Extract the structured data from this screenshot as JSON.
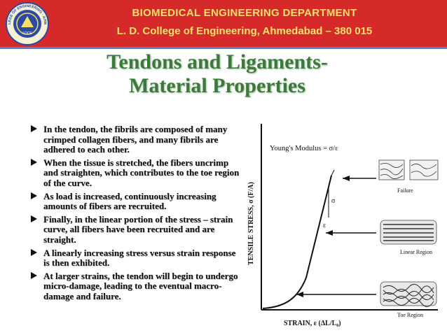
{
  "banner": {
    "department": "BIOMEDICAL ENGINEERING DEPARTMENT",
    "college": "L. D. College of Engineering, Ahmedabad – 380 015",
    "logo_text": "L.D. COLLEGE OF ENGINEERING · AHMEDABAD",
    "logo_core": "LDCE",
    "colors": {
      "banner_bg": "#d62a2a",
      "banner_text": "#f4e06a",
      "border": "#5e7fbf"
    }
  },
  "slide": {
    "title_line1": "Tendons and Ligaments-",
    "title_line2": "Material Properties",
    "title_color": "#3c7a3c",
    "bullets": [
      " In the tendon, the fibrils are composed of many crimped collagen fibers, and many fibrils are adhered to each other.",
      "When the tissue is stretched, the fibers uncrimp and straighten, which contributes to the toe region of the curve.",
      "As load is increased, continuously increasing amounts of fibers are recruited.",
      "Finally, in the linear portion of the stress – strain curve, all fibers have been recruited and are straight.",
      "A linearly increasing stress versus strain response is then exhibited.",
      "At larger strains, the tendon will begin to undergo micro-damage, leading to the eventual macro-damage and failure."
    ]
  },
  "figure": {
    "youngs_label": "Young's Modulus = σ/ε",
    "y_axis_label": "TENSILE STRESS, σ (F/A)",
    "x_axis_label": "STRAIN, ε (ΔL/L₀)",
    "sigma": "σ",
    "epsilon": "ε",
    "regions": [
      "Failure",
      "Linear Region",
      "Toe Region"
    ]
  }
}
